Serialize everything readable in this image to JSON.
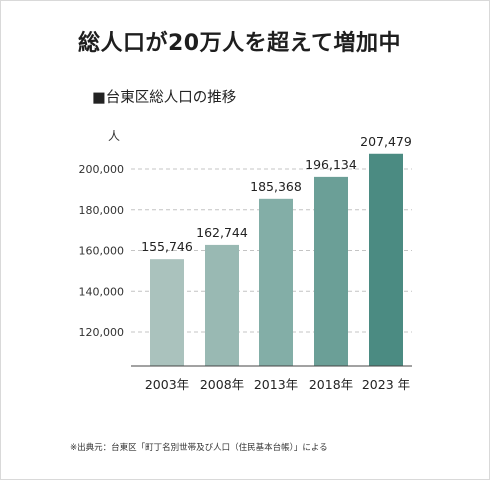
{
  "headline": "総人口が20万人を超えて増加中",
  "chart_data": {
    "type": "bar",
    "title": "■台東区総人口の推移",
    "y_unit": "人",
    "categories": [
      "2003年",
      "2008年",
      "2013年",
      "2018年",
      "2023 年"
    ],
    "values": [
      155746,
      162744,
      185368,
      196134,
      207479
    ],
    "value_labels": [
      "155,746",
      "162,744",
      "185,368",
      "196,134",
      "207,479"
    ],
    "y_ticks": [
      120000,
      140000,
      160000,
      180000,
      200000
    ],
    "y_tick_labels": [
      "120,000",
      "140,000",
      "160,000",
      "180,000",
      "200,000"
    ],
    "ylim": [
      100000,
      212000
    ],
    "grid": "dashed horizontal",
    "bar_colors": [
      "#aac2bd",
      "#99b9b3",
      "#83aea7",
      "#6b9f97",
      "#4b8b82"
    ]
  },
  "source_note": "※出典元：台東区「町丁名別世帯及び人口（住民基本台帳）」による"
}
